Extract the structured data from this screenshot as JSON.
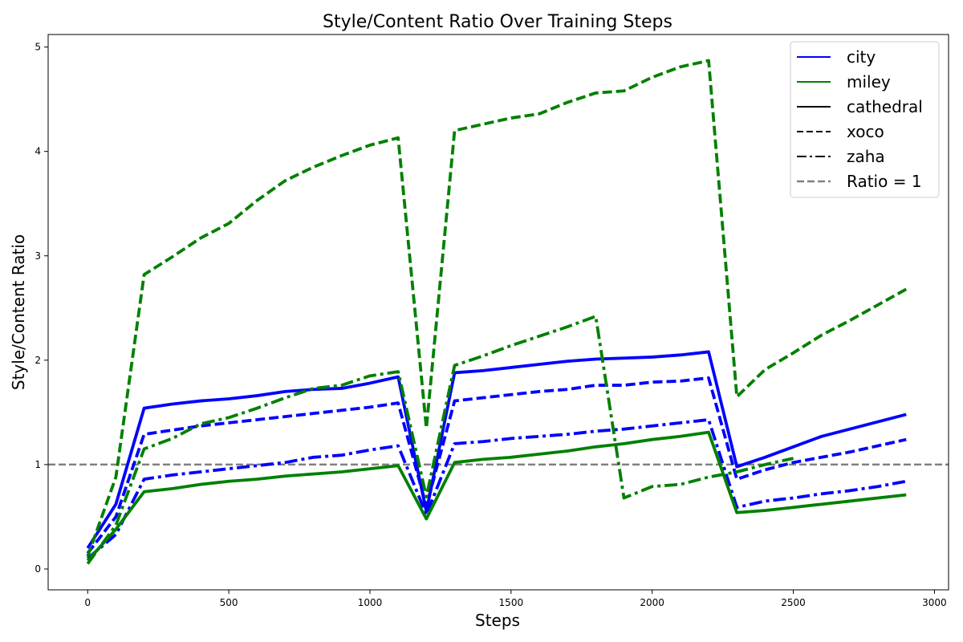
{
  "chart_data": {
    "type": "line",
    "title": "Style/Content Ratio Over Training Steps",
    "xlabel": "Steps",
    "ylabel": "Style/Content Ratio",
    "xlim": [
      -140,
      3050
    ],
    "ylim": [
      -0.2,
      5.12
    ],
    "xticks": [
      0,
      500,
      1000,
      1500,
      2000,
      2500,
      3000
    ],
    "yticks": [
      0,
      1,
      2,
      3,
      4,
      5
    ],
    "grid": false,
    "legend_position": "top-right",
    "reference_line": {
      "name": "Ratio = 1",
      "y": 1,
      "color": "#808080",
      "dash": "dashed"
    },
    "legend": [
      {
        "label": "city",
        "kind": "color",
        "color": "#0000ff"
      },
      {
        "label": "miley",
        "kind": "color",
        "color": "#008000"
      },
      {
        "label": "cathedral",
        "kind": "style",
        "dash": "solid"
      },
      {
        "label": "xoco",
        "kind": "style",
        "dash": "dashed"
      },
      {
        "label": "zaha",
        "kind": "style",
        "dash": "dashdot"
      },
      {
        "label": "Ratio = 1",
        "kind": "ref",
        "color": "#808080",
        "dash": "dashed"
      }
    ],
    "series": [
      {
        "color": "#0000ff",
        "dash": "solid",
        "x": [
          0,
          100,
          200,
          300,
          400,
          500,
          600,
          700,
          800,
          900,
          1000,
          1100,
          1200,
          1300,
          1400,
          1500,
          1600,
          1700,
          1800,
          1900,
          2000,
          2100,
          2200,
          2300,
          2400,
          2500,
          2600,
          2700,
          2800,
          2900
        ],
        "y": [
          0.2,
          0.62,
          1.54,
          1.58,
          1.61,
          1.63,
          1.66,
          1.7,
          1.72,
          1.73,
          1.78,
          1.84,
          0.55,
          1.88,
          1.9,
          1.93,
          1.96,
          1.99,
          2.01,
          2.02,
          2.03,
          2.05,
          2.08,
          0.98,
          1.07,
          1.17,
          1.27,
          1.34,
          1.41,
          1.48
        ]
      },
      {
        "color": "#0000ff",
        "dash": "dashed",
        "x": [
          0,
          100,
          200,
          300,
          400,
          500,
          600,
          700,
          800,
          900,
          1000,
          1100,
          1200,
          1300,
          1400,
          1500,
          1600,
          1700,
          1800,
          1900,
          2000,
          2100,
          2200,
          2300,
          2400,
          2500,
          2600,
          2700,
          2800,
          2900
        ],
        "y": [
          0.15,
          0.5,
          1.29,
          1.33,
          1.37,
          1.4,
          1.43,
          1.46,
          1.49,
          1.52,
          1.55,
          1.59,
          0.6,
          1.61,
          1.64,
          1.67,
          1.7,
          1.72,
          1.76,
          1.76,
          1.79,
          1.8,
          1.83,
          0.86,
          0.95,
          1.02,
          1.07,
          1.12,
          1.18,
          1.24
        ]
      },
      {
        "color": "#0000ff",
        "dash": "dashdot",
        "x": [
          0,
          100,
          200,
          300,
          400,
          500,
          600,
          700,
          800,
          900,
          1000,
          1100,
          1200,
          1300,
          1400,
          1500,
          1600,
          1700,
          1800,
          1900,
          2000,
          2100,
          2200,
          2300,
          2400,
          2500,
          2600,
          2700,
          2800,
          2900
        ],
        "y": [
          0.1,
          0.33,
          0.86,
          0.9,
          0.93,
          0.96,
          0.99,
          1.02,
          1.07,
          1.09,
          1.14,
          1.18,
          0.52,
          1.2,
          1.22,
          1.25,
          1.27,
          1.29,
          1.32,
          1.34,
          1.37,
          1.4,
          1.43,
          0.59,
          0.65,
          0.68,
          0.72,
          0.75,
          0.79,
          0.84
        ]
      },
      {
        "color": "#008000",
        "dash": "solid",
        "x": [
          0,
          100,
          200,
          300,
          400,
          500,
          600,
          700,
          800,
          900,
          1000,
          1100,
          1200,
          1300,
          1400,
          1500,
          1600,
          1700,
          1800,
          1900,
          2000,
          2100,
          2200,
          2300,
          2400,
          2500,
          2600,
          2700,
          2800,
          2900
        ],
        "y": [
          0.08,
          0.38,
          0.74,
          0.77,
          0.81,
          0.84,
          0.86,
          0.89,
          0.91,
          0.93,
          0.96,
          0.99,
          0.48,
          1.02,
          1.05,
          1.07,
          1.1,
          1.13,
          1.17,
          1.2,
          1.24,
          1.27,
          1.31,
          0.54,
          0.56,
          0.59,
          0.62,
          0.65,
          0.68,
          0.71
        ]
      },
      {
        "color": "#008000",
        "dash": "dashed",
        "x": [
          0,
          100,
          200,
          300,
          400,
          500,
          600,
          700,
          800,
          900,
          1000,
          1100,
          1200,
          1300,
          1400,
          1500,
          1600,
          1700,
          1800,
          1900,
          2000,
          2100,
          2200,
          2300,
          2400,
          2500,
          2600,
          2700,
          2800,
          2900
        ],
        "y": [
          0.12,
          0.88,
          2.82,
          2.99,
          3.17,
          3.31,
          3.53,
          3.72,
          3.85,
          3.96,
          4.06,
          4.13,
          1.35,
          4.2,
          4.26,
          4.32,
          4.36,
          4.47,
          4.56,
          4.58,
          4.71,
          4.81,
          4.87,
          1.65,
          1.91,
          2.07,
          2.24,
          2.38,
          2.53,
          2.68
        ]
      },
      {
        "color": "#008000",
        "dash": "dashdot",
        "x": [
          0,
          100,
          200,
          300,
          400,
          500,
          600,
          700,
          800,
          900,
          1000,
          1100,
          1200,
          1300,
          1400,
          1500,
          1600,
          1700,
          1800,
          1900,
          2000,
          2100,
          2200,
          2300,
          2400,
          2500
        ],
        "y": [
          0.05,
          0.42,
          1.15,
          1.25,
          1.39,
          1.45,
          1.54,
          1.64,
          1.73,
          1.76,
          1.85,
          1.89,
          0.69,
          1.95,
          2.04,
          2.14,
          2.23,
          2.32,
          2.42,
          0.68,
          0.79,
          0.81,
          0.88,
          0.93,
          1.0,
          1.06
        ]
      }
    ]
  }
}
